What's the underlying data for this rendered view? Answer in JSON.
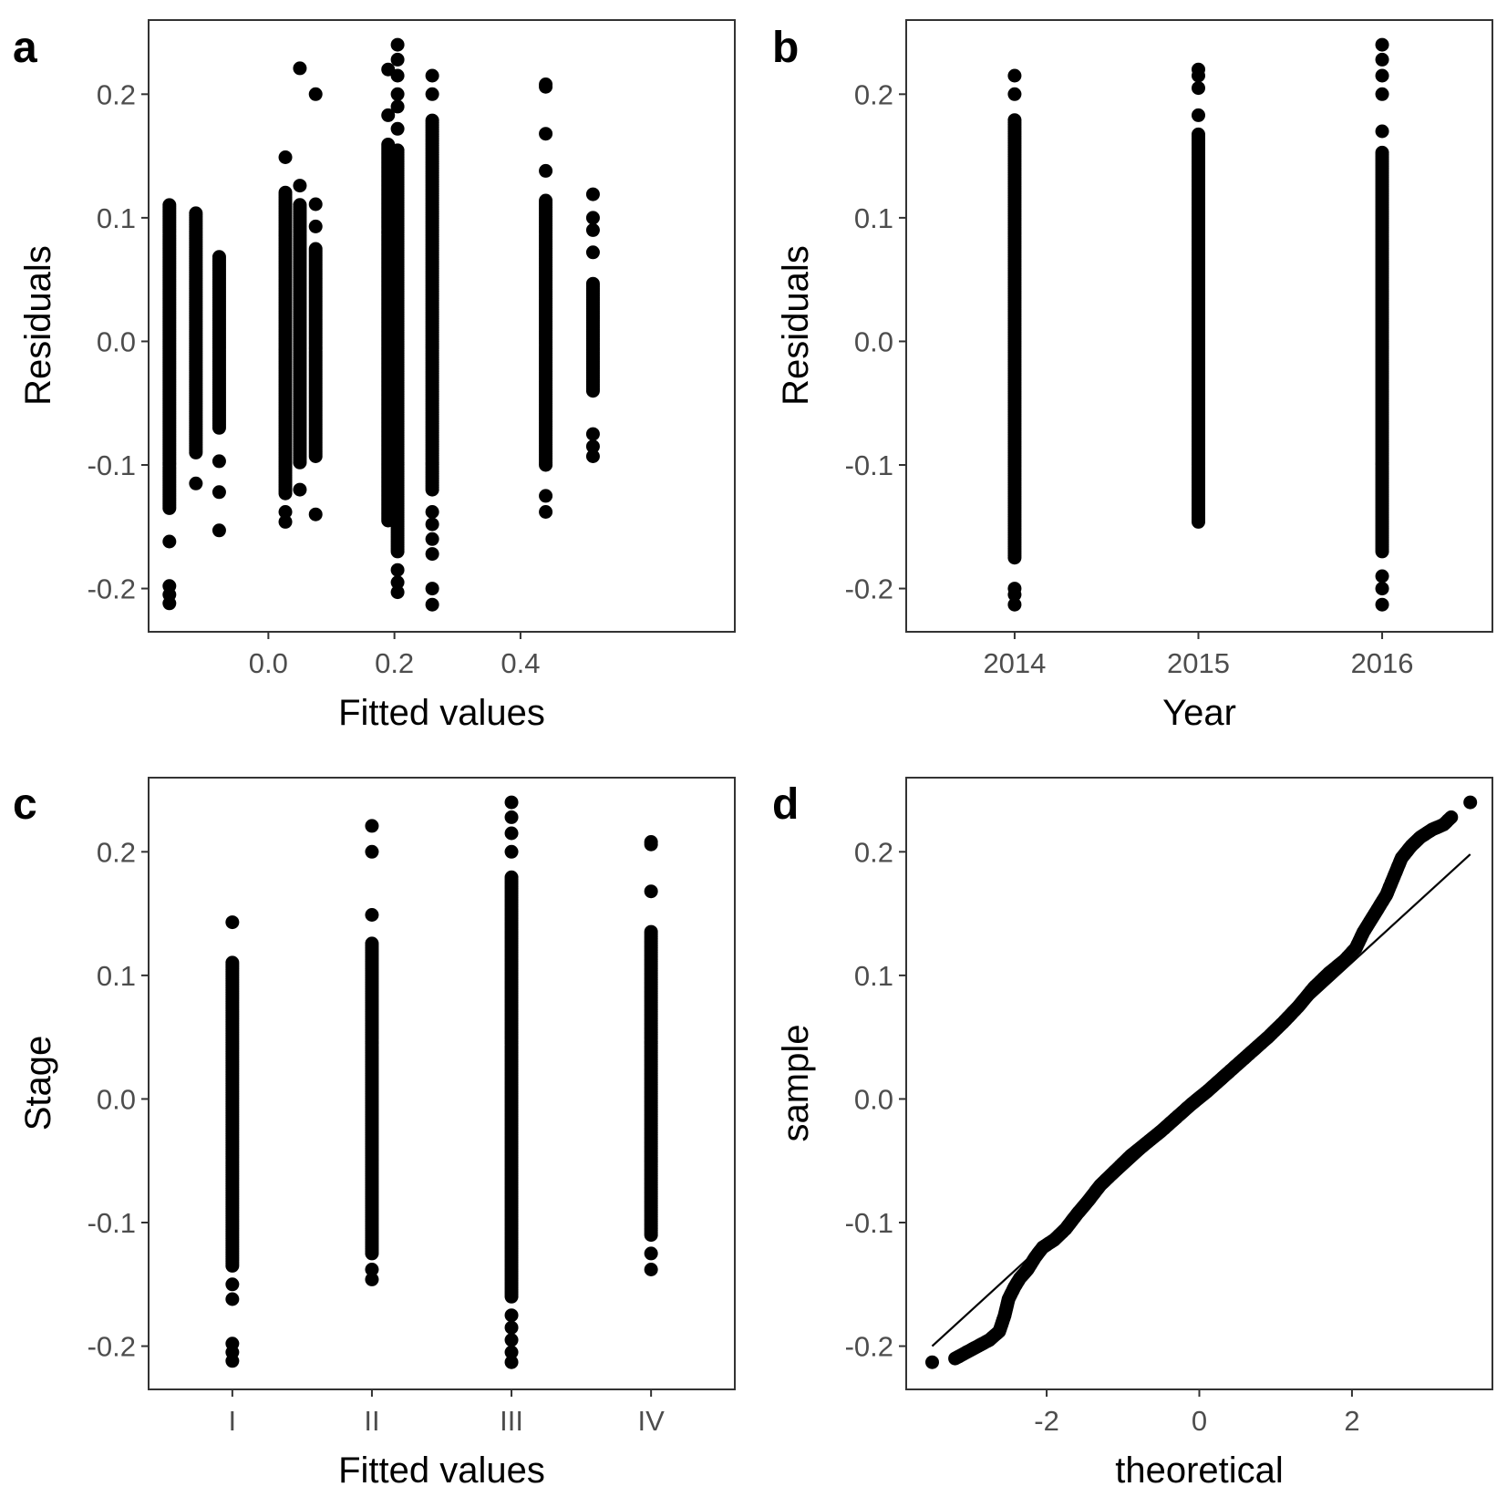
{
  "colors": {
    "point": "#000000",
    "frame": "#333333",
    "tick_text": "#4d4d4d"
  },
  "chart_data": [
    {
      "panel": "a",
      "type": "scatter",
      "xlabel": "Fitted values",
      "ylabel": "Residuals",
      "xlim": [
        -0.19,
        0.74
      ],
      "ylim": [
        -0.235,
        0.26
      ],
      "xticks": [
        0.0,
        0.2,
        0.4
      ],
      "xtick_labels": [
        "0.0",
        "0.2",
        "0.4"
      ],
      "yticks": [
        -0.2,
        -0.1,
        0.0,
        0.1,
        0.2
      ],
      "ytick_labels": [
        "-0.2",
        "-0.1",
        "0.0",
        "0.1",
        "0.2"
      ],
      "columns": [
        {
          "x": -0.157,
          "min": -0.212,
          "max": 0.143,
          "dense": [
            -0.135,
            0.112
          ],
          "outliers": [
            -0.212,
            -0.205,
            -0.198,
            -0.162
          ]
        },
        {
          "x": -0.115,
          "min": -0.115,
          "max": 0.105,
          "dense": [
            -0.09,
            0.105
          ],
          "outliers": [
            -0.115
          ]
        },
        {
          "x": -0.078,
          "min": -0.153,
          "max": 0.07,
          "dense": [
            -0.07,
            0.07
          ],
          "outliers": [
            -0.153,
            -0.122,
            -0.097
          ]
        },
        {
          "x": 0.027,
          "min": -0.146,
          "max": 0.149,
          "dense": [
            -0.123,
            0.122
          ],
          "outliers": [
            -0.146,
            -0.138,
            0.149
          ]
        },
        {
          "x": 0.05,
          "min": -0.12,
          "max": 0.221,
          "dense": [
            -0.098,
            0.112
          ],
          "outliers": [
            -0.12,
            0.126,
            0.221
          ]
        },
        {
          "x": 0.075,
          "min": -0.14,
          "max": 0.2,
          "dense": [
            -0.093,
            0.075
          ],
          "outliers": [
            -0.14,
            0.093,
            0.111,
            0.2
          ]
        },
        {
          "x": 0.19,
          "min": -0.145,
          "max": 0.22,
          "dense": [
            -0.145,
            0.16
          ],
          "outliers": [
            0.183,
            0.22
          ]
        },
        {
          "x": 0.205,
          "min": -0.203,
          "max": 0.24,
          "dense": [
            -0.17,
            0.155
          ],
          "outliers": [
            -0.203,
            -0.195,
            -0.185,
            0.172,
            0.19,
            0.2,
            0.215,
            0.228,
            0.24
          ]
        },
        {
          "x": 0.26,
          "min": -0.213,
          "max": 0.215,
          "dense": [
            -0.12,
            0.18
          ],
          "outliers": [
            -0.213,
            -0.2,
            -0.172,
            -0.16,
            -0.148,
            -0.138,
            0.2,
            0.215
          ]
        },
        {
          "x": 0.44,
          "min": -0.138,
          "max": 0.208,
          "dense": [
            -0.1,
            0.115
          ],
          "outliers": [
            -0.138,
            -0.125,
            0.138,
            0.168,
            0.206,
            0.208
          ]
        },
        {
          "x": 0.515,
          "min": -0.093,
          "max": 0.119,
          "dense": [
            -0.04,
            0.048
          ],
          "outliers": [
            -0.093,
            -0.085,
            -0.075,
            0.072,
            0.09,
            0.1,
            0.119
          ]
        }
      ]
    },
    {
      "panel": "b",
      "type": "scatter",
      "xlabel": "Year",
      "ylabel": "Residuals",
      "xlim": [
        2013.41,
        2016.6
      ],
      "ylim": [
        -0.235,
        0.26
      ],
      "xticks": [
        2014,
        2015,
        2016
      ],
      "xtick_labels": [
        "2014",
        "2015",
        "2016"
      ],
      "yticks": [
        -0.2,
        -0.1,
        0.0,
        0.1,
        0.2
      ],
      "ytick_labels": [
        "-0.2",
        "-0.1",
        "0.0",
        "0.1",
        "0.2"
      ],
      "columns": [
        {
          "x": 2014,
          "min": -0.213,
          "max": 0.215,
          "dense": [
            -0.175,
            0.18
          ],
          "outliers": [
            -0.213,
            -0.205,
            -0.2,
            0.2,
            0.215
          ]
        },
        {
          "x": 2015,
          "min": -0.146,
          "max": 0.22,
          "dense": [
            -0.146,
            0.168
          ],
          "outliers": [
            0.183,
            0.205,
            0.215,
            0.22
          ]
        },
        {
          "x": 2016,
          "min": -0.213,
          "max": 0.24,
          "dense": [
            -0.17,
            0.153
          ],
          "outliers": [
            -0.213,
            -0.2,
            -0.19,
            0.17,
            0.2,
            0.215,
            0.228,
            0.24
          ]
        }
      ]
    },
    {
      "panel": "c",
      "type": "scatter",
      "xlabel": "Fitted values",
      "ylabel": "Stage",
      "xlim": [
        0.4,
        4.6
      ],
      "ylim": [
        -0.235,
        0.26
      ],
      "xticks": [
        1,
        2,
        3,
        4
      ],
      "xtick_labels": [
        "I",
        "II",
        "III",
        "IV"
      ],
      "yticks": [
        -0.2,
        -0.1,
        0.0,
        0.1,
        0.2
      ],
      "ytick_labels": [
        "-0.2",
        "-0.1",
        "0.0",
        "0.1",
        "0.2"
      ],
      "columns": [
        {
          "x": 1,
          "min": -0.212,
          "max": 0.143,
          "dense": [
            -0.135,
            0.112
          ],
          "outliers": [
            -0.212,
            -0.205,
            -0.198,
            -0.162,
            -0.15,
            0.143
          ]
        },
        {
          "x": 2,
          "min": -0.146,
          "max": 0.221,
          "dense": [
            -0.125,
            0.127
          ],
          "outliers": [
            -0.146,
            -0.138,
            0.149,
            0.2,
            0.221
          ]
        },
        {
          "x": 3,
          "min": -0.213,
          "max": 0.24,
          "dense": [
            -0.16,
            0.18
          ],
          "outliers": [
            -0.213,
            -0.205,
            -0.195,
            -0.185,
            -0.175,
            0.2,
            0.215,
            0.228,
            0.24
          ]
        },
        {
          "x": 4,
          "min": -0.138,
          "max": 0.208,
          "dense": [
            -0.11,
            0.137
          ],
          "outliers": [
            -0.138,
            -0.125,
            0.168,
            0.206,
            0.208
          ]
        }
      ]
    },
    {
      "panel": "d",
      "type": "scatter",
      "xlabel": "theoretical",
      "ylabel": "sample",
      "xlim": [
        -3.84,
        3.84
      ],
      "ylim": [
        -0.235,
        0.26
      ],
      "xticks": [
        -2,
        0,
        2
      ],
      "xtick_labels": [
        "-2",
        "0",
        "2"
      ],
      "yticks": [
        -0.2,
        -0.1,
        0.0,
        0.1,
        0.2
      ],
      "ytick_labels": [
        "-0.2",
        "-0.1",
        "0.0",
        "0.1",
        "0.2"
      ],
      "qq_points": [
        [
          -3.5,
          -0.213
        ],
        [
          -3.2,
          -0.21
        ],
        [
          -3.05,
          -0.205
        ],
        [
          -2.9,
          -0.2
        ],
        [
          -2.75,
          -0.195
        ],
        [
          -2.62,
          -0.188
        ],
        [
          -2.55,
          -0.175
        ],
        [
          -2.5,
          -0.162
        ],
        [
          -2.42,
          -0.152
        ],
        [
          -2.35,
          -0.145
        ],
        [
          -2.25,
          -0.138
        ],
        [
          -2.15,
          -0.128
        ],
        [
          -2.05,
          -0.12
        ],
        [
          -1.9,
          -0.114
        ],
        [
          -1.75,
          -0.105
        ],
        [
          -1.6,
          -0.093
        ],
        [
          -1.45,
          -0.082
        ],
        [
          -1.3,
          -0.07
        ],
        [
          -1.1,
          -0.058
        ],
        [
          -0.9,
          -0.046
        ],
        [
          -0.7,
          -0.036
        ],
        [
          -0.5,
          -0.026
        ],
        [
          -0.3,
          -0.015
        ],
        [
          -0.1,
          -0.004
        ],
        [
          0.1,
          0.006
        ],
        [
          0.3,
          0.017
        ],
        [
          0.5,
          0.028
        ],
        [
          0.7,
          0.039
        ],
        [
          0.9,
          0.05
        ],
        [
          1.1,
          0.062
        ],
        [
          1.3,
          0.075
        ],
        [
          1.5,
          0.09
        ],
        [
          1.7,
          0.102
        ],
        [
          1.9,
          0.112
        ],
        [
          2.05,
          0.122
        ],
        [
          2.15,
          0.135
        ],
        [
          2.25,
          0.145
        ],
        [
          2.35,
          0.155
        ],
        [
          2.45,
          0.165
        ],
        [
          2.55,
          0.18
        ],
        [
          2.65,
          0.195
        ],
        [
          2.78,
          0.205
        ],
        [
          2.9,
          0.212
        ],
        [
          3.05,
          0.218
        ],
        [
          3.2,
          0.222
        ],
        [
          3.3,
          0.228
        ],
        [
          3.55,
          0.24
        ]
      ],
      "reference_line": [
        [
          -3.5,
          -0.2
        ],
        [
          3.55,
          0.198
        ]
      ]
    }
  ]
}
